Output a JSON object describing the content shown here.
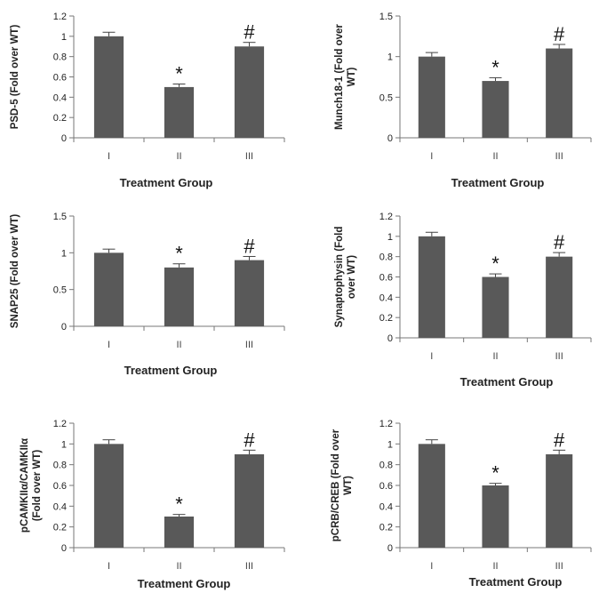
{
  "chart_data": [
    {
      "type": "bar",
      "ylabel": [
        "PSD-5 (Fold over WT)"
      ],
      "xlabel": "Treatment Group",
      "categories": [
        "I",
        "II",
        "III"
      ],
      "values": [
        1.0,
        0.5,
        0.9
      ],
      "errors": [
        0.04,
        0.03,
        0.04
      ],
      "markers": [
        "",
        "*",
        "#"
      ],
      "ylim": [
        0,
        1.2
      ],
      "ticks": [
        0,
        0.2,
        0.4,
        0.6,
        0.8,
        1,
        1.2
      ],
      "tick_labels": [
        "0",
        "0.2",
        "0.4",
        "0.6",
        "0.8",
        "1",
        "1.2"
      ],
      "grid": false,
      "bar_color": "#595959"
    },
    {
      "type": "bar",
      "ylabel": [
        "Munch18-1 (Fold over",
        "WT)"
      ],
      "xlabel": "Treatment Group",
      "categories": [
        "I",
        "II",
        "III"
      ],
      "values": [
        1.0,
        0.7,
        1.1
      ],
      "errors": [
        0.05,
        0.04,
        0.05
      ],
      "markers": [
        "",
        "*",
        "#"
      ],
      "ylim": [
        0,
        1.5
      ],
      "ticks": [
        0,
        0.5,
        1,
        1.5
      ],
      "tick_labels": [
        "0",
        "0.5",
        "1",
        "1.5"
      ],
      "grid": false,
      "bar_color": "#595959"
    },
    {
      "type": "bar",
      "ylabel": [
        "SNAP25 (Fold over WT)"
      ],
      "xlabel": "Treatment Group",
      "categories": [
        "I",
        "II",
        "III"
      ],
      "values": [
        1.0,
        0.8,
        0.9
      ],
      "errors": [
        0.05,
        0.05,
        0.05
      ],
      "markers": [
        "",
        "*",
        "#"
      ],
      "ylim": [
        0,
        1.5
      ],
      "ticks": [
        0,
        0.5,
        1,
        1.5
      ],
      "tick_labels": [
        "0",
        "0.5",
        "1",
        "1.5"
      ],
      "grid": false,
      "bar_color": "#595959"
    },
    {
      "type": "bar",
      "ylabel": [
        "Synaptophysin (Fold",
        "over WT)"
      ],
      "xlabel": "Treatment Group",
      "categories": [
        "I",
        "II",
        "III"
      ],
      "values": [
        1.0,
        0.6,
        0.8
      ],
      "errors": [
        0.04,
        0.03,
        0.04
      ],
      "markers": [
        "",
        "*",
        "#"
      ],
      "ylim": [
        0,
        1.2
      ],
      "ticks": [
        0,
        0.2,
        0.4,
        0.6,
        0.8,
        1,
        1.2
      ],
      "tick_labels": [
        "0",
        "0.2",
        "0.4",
        "0.6",
        "0.8",
        "1",
        "1.2"
      ],
      "grid": false,
      "bar_color": "#595959"
    },
    {
      "type": "bar",
      "ylabel": [
        "pCAMKIIα/CAMKIIα",
        "(Fold over WT)"
      ],
      "xlabel": "Treatment Group",
      "categories": [
        "I",
        "II",
        "III"
      ],
      "values": [
        1.0,
        0.3,
        0.9
      ],
      "errors": [
        0.04,
        0.02,
        0.04
      ],
      "markers": [
        "",
        "*",
        "#"
      ],
      "ylim": [
        0,
        1.2
      ],
      "ticks": [
        0,
        0.2,
        0.4,
        0.6,
        0.8,
        1,
        1.2
      ],
      "tick_labels": [
        "0",
        "0.2",
        "0.4",
        "0.6",
        "0.8",
        "1",
        "1.2"
      ],
      "grid": false,
      "bar_color": "#595959"
    },
    {
      "type": "bar",
      "ylabel": [
        "pCRB/CREB (Fold over",
        "WT)"
      ],
      "xlabel": "Treatment Group",
      "categories": [
        "I",
        "II",
        "III"
      ],
      "values": [
        1.0,
        0.6,
        0.9
      ],
      "errors": [
        0.04,
        0.02,
        0.04
      ],
      "markers": [
        "",
        "*",
        "#"
      ],
      "ylim": [
        0,
        1.2
      ],
      "ticks": [
        0,
        0.2,
        0.4,
        0.6,
        0.8,
        1,
        1.2
      ],
      "tick_labels": [
        "0",
        "0.2",
        "0.4",
        "0.6",
        "0.8",
        "1",
        "1.2"
      ],
      "grid": false,
      "bar_color": "#595959"
    }
  ]
}
